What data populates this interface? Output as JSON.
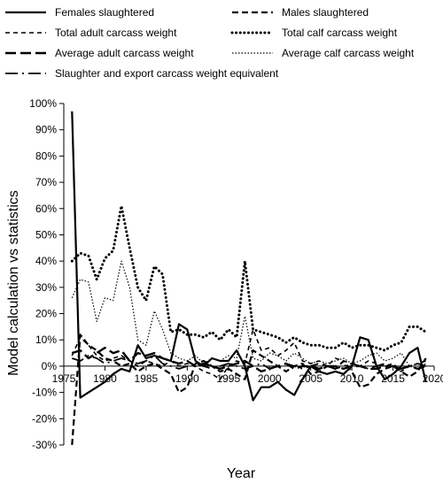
{
  "chart_data": {
    "type": "line",
    "title": "",
    "xlabel": "Year",
    "ylabel": "Model calculation vs statistics",
    "xlim": [
      1975,
      2020
    ],
    "ylim": [
      -30,
      100
    ],
    "x_ticks": [
      "1975",
      "1980",
      "1985",
      "1990",
      "1995",
      "2000",
      "2005",
      "2010",
      "2015",
      "2020"
    ],
    "y_ticks": [
      "-30%",
      "-20%",
      "-10%",
      "0%",
      "10%",
      "20%",
      "30%",
      "40%",
      "50%",
      "60%",
      "70%",
      "80%",
      "90%",
      "100%"
    ],
    "grid": false,
    "legend_position": "top",
    "series": [
      {
        "name": "Females slaughtered",
        "x": [
          1976,
          1977,
          1978,
          1979,
          1980,
          1981,
          1982,
          1983,
          1984,
          1985,
          1986,
          1987,
          1988,
          1989,
          1990,
          1991,
          1992,
          1993,
          1994,
          1995,
          1996,
          1997,
          1998,
          1999,
          2000,
          2001,
          2002,
          2003,
          2004,
          2005,
          2006,
          2007,
          2008,
          2009,
          2010,
          2011,
          2012,
          2013,
          2014,
          2015,
          2016,
          2017,
          2018,
          2019
        ],
        "y": [
          97,
          -12,
          -10,
          -8,
          -6,
          -3,
          -1,
          -2,
          8,
          3,
          4,
          3,
          2,
          16,
          14,
          2,
          0,
          3,
          2,
          2,
          6,
          0,
          -13,
          -8,
          -8,
          -6,
          -9,
          -11,
          -5,
          0,
          -2,
          -3,
          -2,
          -3,
          0,
          11,
          10,
          0,
          -5,
          -3,
          0,
          5,
          7,
          -6
        ]
      },
      {
        "name": "Males slaughtered",
        "x": [
          1976,
          1977,
          1978,
          1979,
          1980,
          1981,
          1982,
          1983,
          1984,
          1985,
          1986,
          1987,
          1988,
          1989,
          1990,
          1991,
          1992,
          1993,
          1994,
          1995,
          1996,
          1997,
          1998,
          1999,
          2000,
          2001,
          2002,
          2003,
          2004,
          2005,
          2006,
          2007,
          2008,
          2009,
          2010,
          2011,
          2012,
          2013,
          2014,
          2015,
          2016,
          2017,
          2018,
          2019
        ],
        "y": [
          -30,
          12,
          8,
          6,
          3,
          2,
          0,
          1,
          -2,
          0,
          1,
          -1,
          -3,
          -10,
          -8,
          1,
          2,
          0,
          -2,
          -1,
          -3,
          -5,
          6,
          4,
          2,
          0,
          -2,
          0,
          1,
          -3,
          -2,
          0,
          -1,
          2,
          -2,
          -8,
          -7,
          -3,
          -1,
          0,
          -2,
          -4,
          -2,
          3
        ]
      },
      {
        "name": "Total adult carcass weight",
        "x": [
          1976,
          1977,
          1978,
          1979,
          1980,
          1981,
          1982,
          1983,
          1984,
          1985,
          1986,
          1987,
          1988,
          1989,
          1990,
          1991,
          1992,
          1993,
          1994,
          1995,
          1996,
          1997,
          1998,
          1999,
          2000,
          2001,
          2002,
          2003,
          2004,
          2005,
          2006,
          2007,
          2008,
          2009,
          2010,
          2011,
          2012,
          2013,
          2014,
          2015,
          2016,
          2017,
          2018,
          2019
        ],
        "y": [
          4,
          11,
          8,
          4,
          2,
          3,
          4,
          2,
          0,
          2,
          1,
          0,
          2,
          0,
          1,
          0,
          -2,
          -3,
          -5,
          0,
          2,
          1,
          14,
          6,
          7,
          4,
          6,
          9,
          2,
          1,
          2,
          0,
          3,
          2,
          1,
          0,
          2,
          1,
          0,
          1,
          -2,
          0,
          1,
          2
        ]
      },
      {
        "name": "Total calf carcass weight",
        "x": [
          1976,
          1977,
          1978,
          1979,
          1980,
          1981,
          1982,
          1983,
          1984,
          1985,
          1986,
          1987,
          1988,
          1989,
          1990,
          1991,
          1992,
          1993,
          1994,
          1995,
          1996,
          1997,
          1998,
          1999,
          2000,
          2001,
          2002,
          2003,
          2004,
          2005,
          2006,
          2007,
          2008,
          2009,
          2010,
          2011,
          2012,
          2013,
          2014,
          2015,
          2016,
          2017,
          2018,
          2019
        ],
        "y": [
          40,
          43,
          42,
          33,
          41,
          44,
          61,
          45,
          30,
          25,
          38,
          35,
          13,
          14,
          12,
          12,
          11,
          13,
          10,
          14,
          11,
          40,
          14,
          13,
          12,
          11,
          9,
          11,
          9,
          8,
          8,
          7,
          7,
          9,
          7,
          8,
          8,
          7,
          6,
          8,
          9,
          15,
          15,
          13
        ]
      },
      {
        "name": "Average adult carcass weight",
        "x": [
          1976,
          1977,
          1978,
          1979,
          1980,
          1981,
          1982,
          1983,
          1984,
          1985,
          1986,
          1987,
          1988,
          1989,
          1990,
          1991,
          1992,
          1993,
          1994,
          1995,
          1996,
          1997,
          1998,
          1999,
          2000,
          2001,
          2002,
          2003,
          2004,
          2005,
          2006,
          2007,
          2008,
          2009,
          2010,
          2011,
          2012,
          2013,
          2014,
          2015,
          2016,
          2017,
          2018,
          2019
        ],
        "y": [
          5,
          6,
          3,
          5,
          7,
          5,
          6,
          2,
          5,
          4,
          5,
          3,
          2,
          1,
          2,
          0,
          1,
          0,
          -1,
          0,
          1,
          2,
          0,
          -2,
          -1,
          0,
          1,
          -1,
          0,
          0,
          -1,
          0,
          0,
          -1,
          0,
          0,
          -1,
          -1,
          0,
          0,
          -1,
          0,
          -1,
          0
        ]
      },
      {
        "name": "Average calf carcass weight",
        "x": [
          1976,
          1977,
          1978,
          1979,
          1980,
          1981,
          1982,
          1983,
          1984,
          1985,
          1986,
          1987,
          1988,
          1989,
          1990,
          1991,
          1992,
          1993,
          1994,
          1995,
          1996,
          1997,
          1998,
          1999,
          2000,
          2001,
          2002,
          2003,
          2004,
          2005,
          2006,
          2007,
          2008,
          2009,
          2010,
          2011,
          2012,
          2013,
          2014,
          2015,
          2016,
          2017,
          2018,
          2019
        ],
        "y": [
          26,
          33,
          32,
          17,
          26,
          25,
          40,
          30,
          10,
          8,
          21,
          14,
          5,
          3,
          2,
          4,
          1,
          3,
          2,
          4,
          3,
          19,
          3,
          2,
          5,
          4,
          2,
          5,
          3,
          1,
          2,
          1,
          2,
          3,
          1,
          2,
          4,
          5,
          2,
          3,
          5,
          0,
          -1,
          1
        ]
      },
      {
        "name": "Slaughter and export carcass weight equivalent",
        "x": [
          1976,
          1977,
          1978,
          1979,
          1980,
          1981,
          1982,
          1983,
          1984,
          1985,
          1986,
          1987,
          1988,
          1989,
          1990,
          1991,
          1992,
          1993,
          1994,
          1995,
          1996,
          1997,
          1998,
          1999,
          2000,
          2001,
          2002,
          2003,
          2004,
          2005,
          2006,
          2007,
          2008,
          2009,
          2010,
          2011,
          2012,
          2013,
          2014,
          2015,
          2016,
          2017,
          2018,
          2019
        ],
        "y": [
          3,
          2,
          4,
          3,
          1,
          2,
          3,
          2,
          1,
          2,
          4,
          1,
          0,
          -1,
          0,
          1,
          0,
          -1,
          0,
          1,
          0,
          -1,
          0,
          1,
          -1,
          0,
          1,
          0,
          -1,
          0,
          1,
          0,
          -1,
          0,
          1,
          0,
          -1,
          0,
          1,
          0,
          -1,
          0,
          1,
          0
        ]
      }
    ]
  }
}
